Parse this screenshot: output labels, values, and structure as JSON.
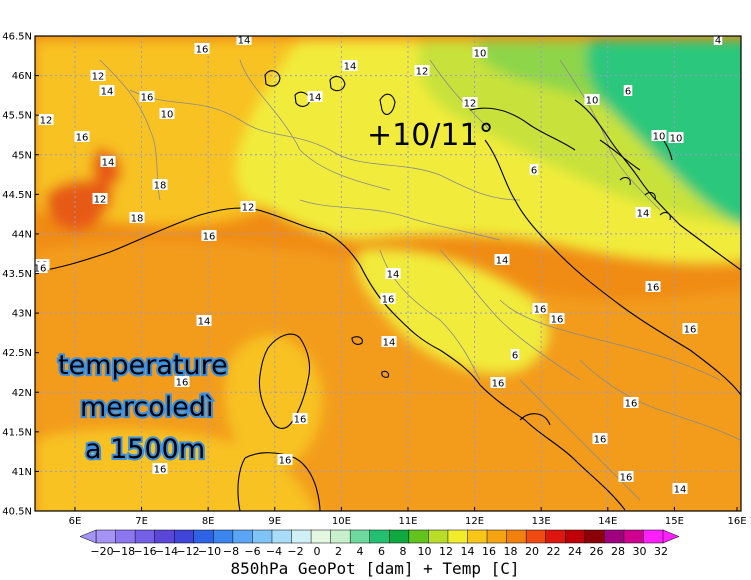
{
  "map": {
    "lat_labels": [
      "46.5N",
      "46N",
      "45.5N",
      "45N",
      "44.5N",
      "44N",
      "43.5N",
      "43N",
      "42.5N",
      "42N",
      "41.5N",
      "41N",
      "40.5N"
    ],
    "lon_labels": [
      "6E",
      "7E",
      "8E",
      "9E",
      "10E",
      "11E",
      "12E",
      "13E",
      "14E",
      "15E",
      "16E"
    ],
    "contour_labels": [
      "16",
      "14",
      "14",
      "10",
      "4",
      "12",
      "12",
      "14",
      "16",
      "14",
      "12",
      "12",
      "10",
      "6",
      "10",
      "16",
      "14",
      "10",
      "10",
      "6",
      "12",
      "18",
      "14",
      "12",
      "18",
      "16",
      "14",
      "12",
      "14",
      "16",
      "14",
      "14",
      "16",
      "6",
      "16",
      "16",
      "16",
      "16",
      "16",
      "14",
      "16",
      "16",
      "16",
      "16",
      "16",
      "16",
      "16"
    ],
    "colors": {
      "background": "#ffffff",
      "map_border": "#000000",
      "coast": "#000000",
      "admin_border": "#8a8a8a",
      "graticule": "#9a9ad0",
      "ocean_base": "#f08c14",
      "warm_zone": "#f39c1e",
      "mild_zone": "#f8c220",
      "cool_zone": "#f1ec3a",
      "cooler_zone": "#c8e23a",
      "cold_zone": "#8ed54a",
      "coldest_zone": "#2bc77c",
      "hot_zone": "#e75a14"
    }
  },
  "scale": {
    "ticks": [
      "−20",
      "−18",
      "−16",
      "−14",
      "−12",
      "−10",
      "−8",
      "−6",
      "−4",
      "−2",
      "0",
      "2",
      "4",
      "6",
      "8",
      "10",
      "12",
      "14",
      "16",
      "18",
      "20",
      "22",
      "24",
      "26",
      "28",
      "30",
      "32"
    ],
    "colors": [
      "#a593f5",
      "#8d77f0",
      "#7360e6",
      "#5a46d8",
      "#3f45d8",
      "#2e63e6",
      "#3b86ee",
      "#5aa5f5",
      "#7fc4f8",
      "#a8dcf8",
      "#d0f0f7",
      "#e4f7e0",
      "#c8f0cc",
      "#6fdaa0",
      "#22c070",
      "#10a840",
      "#62c21e",
      "#b8dc28",
      "#f0ec2c",
      "#f8c618",
      "#f4a410",
      "#f2800e",
      "#ef4a10",
      "#dd1610",
      "#c00008",
      "#8a0006",
      "#a00080",
      "#d00090",
      "#ff20ff"
    ],
    "caption": "850hPa GeoPot [dam] + Temp [C]"
  },
  "overlay": {
    "temp_range": "+10/11°",
    "note_line1": "temperature",
    "note_line2": "mercoledì",
    "note_line3": "a 1500m"
  }
}
